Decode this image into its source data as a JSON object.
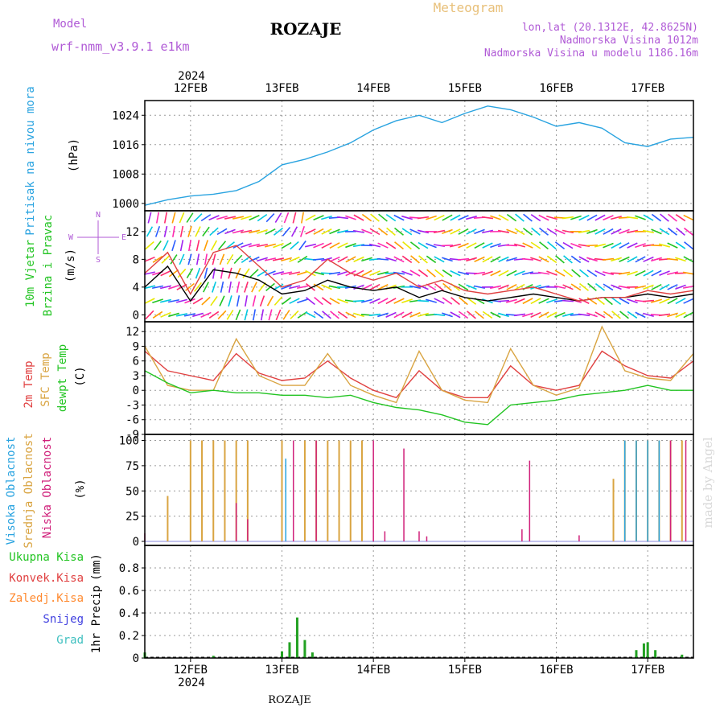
{
  "header": {
    "model_label": "Model",
    "model_name": "wrf-nmm_v3.9.1 e1km",
    "station": "ROZAJE",
    "product": "Meteogram",
    "coords": "lon,lat (20.1312E, 42.8625N)",
    "elevation": "Nadmorska Visina 1012m",
    "model_elevation": "Nadmorska Visina u modelu 1186.16m",
    "watermark": "made by Angel",
    "footer": "ROZAJE"
  },
  "colors": {
    "pressure": "#29a3e0",
    "t2m": "#e04040",
    "sfc": "#d9a441",
    "dewpt": "#22c422",
    "wind_speed": "#000000",
    "gust": "#e04040",
    "cloud_high": "#29a3e0",
    "cloud_mid": "#d9a441",
    "cloud_low": "#d0207a",
    "precip_total": "#22a122",
    "precip_conv": "#e04040",
    "precip_freezing": "#ff8a30",
    "precip_snow": "#4040e0",
    "precip_hail": "#40c0c0"
  },
  "chart_data": {
    "type": "line",
    "x_axis": {
      "year": "2024",
      "start": "2024-02-11T12:00",
      "end": "2024-02-17T12:00",
      "day_labels": [
        "12FEB",
        "13FEB",
        "14FEB",
        "15FEB",
        "16FEB",
        "17FEB"
      ],
      "day_positions": [
        "2024-02-12T00:00",
        "2024-02-13T00:00",
        "2024-02-14T00:00",
        "2024-02-15T00:00",
        "2024-02-16T00:00",
        "2024-02-17T00:00"
      ]
    },
    "panels": [
      {
        "id": "pressure",
        "ylabel": "Pritisak na nivou mora",
        "unit": "(hPa)",
        "ylim": [
          998,
          1028
        ],
        "yticks": [
          1000,
          1008,
          1016,
          1024
        ],
        "series": [
          {
            "name": "Pritisak na nivou mora",
            "x": [
              "2024-02-11T12:00",
              "2024-02-11T18:00",
              "2024-02-12T00:00",
              "2024-02-12T06:00",
              "2024-02-12T12:00",
              "2024-02-12T18:00",
              "2024-02-13T00:00",
              "2024-02-13T06:00",
              "2024-02-13T12:00",
              "2024-02-13T18:00",
              "2024-02-14T00:00",
              "2024-02-14T06:00",
              "2024-02-14T12:00",
              "2024-02-14T18:00",
              "2024-02-15T00:00",
              "2024-02-15T06:00",
              "2024-02-15T12:00",
              "2024-02-15T18:00",
              "2024-02-16T00:00",
              "2024-02-16T06:00",
              "2024-02-16T12:00",
              "2024-02-16T18:00",
              "2024-02-17T00:00",
              "2024-02-17T06:00",
              "2024-02-17T12:00"
            ],
            "values": [
              999.5,
              1001,
              1002,
              1002.5,
              1003.5,
              1006,
              1010.5,
              1012,
              1014,
              1016.5,
              1020,
              1022.5,
              1024,
              1022,
              1024.5,
              1026.5,
              1025.5,
              1023.5,
              1021,
              1022,
              1020.5,
              1016.5,
              1015.5,
              1017.5,
              1018
            ]
          }
        ]
      },
      {
        "id": "wind",
        "ylabel_1": "10m Vjetar",
        "ylabel_2": "Brzina i Pravac",
        "unit": "(m/s)",
        "compass": [
          "N",
          "W",
          "E",
          "S"
        ],
        "ylim": [
          -1,
          15
        ],
        "yticks": [
          0,
          4,
          8,
          12
        ],
        "series": [
          {
            "name": "speed",
            "x": [
              "2024-02-11T12:00",
              "2024-02-11T18:00",
              "2024-02-12T00:00",
              "2024-02-12T06:00",
              "2024-02-12T12:00",
              "2024-02-12T18:00",
              "2024-02-13T00:00",
              "2024-02-13T06:00",
              "2024-02-13T12:00",
              "2024-02-13T18:00",
              "2024-02-14T00:00",
              "2024-02-14T06:00",
              "2024-02-14T12:00",
              "2024-02-14T18:00",
              "2024-02-15T00:00",
              "2024-02-15T06:00",
              "2024-02-15T12:00",
              "2024-02-15T18:00",
              "2024-02-16T00:00",
              "2024-02-16T06:00",
              "2024-02-16T12:00",
              "2024-02-16T18:00",
              "2024-02-17T00:00",
              "2024-02-17T06:00",
              "2024-02-17T12:00"
            ],
            "values": [
              4,
              7,
              2,
              6.5,
              6,
              5,
              3,
              3.5,
              5,
              4,
              3.5,
              4,
              2.5,
              3.5,
              2.5,
              2,
              2.5,
              3,
              2.5,
              2,
              2.5,
              2.5,
              3,
              2.5,
              3
            ]
          },
          {
            "name": "gust",
            "x": [
              "2024-02-11T12:00",
              "2024-02-11T18:00",
              "2024-02-12T00:00",
              "2024-02-12T06:00",
              "2024-02-12T12:00",
              "2024-02-12T18:00",
              "2024-02-13T00:00",
              "2024-02-13T06:00",
              "2024-02-13T12:00",
              "2024-02-13T18:00",
              "2024-02-14T00:00",
              "2024-02-14T06:00",
              "2024-02-14T12:00",
              "2024-02-14T18:00",
              "2024-02-15T00:00",
              "2024-02-15T06:00",
              "2024-02-15T12:00",
              "2024-02-15T18:00",
              "2024-02-16T00:00",
              "2024-02-16T06:00",
              "2024-02-16T12:00",
              "2024-02-16T18:00",
              "2024-02-17T00:00",
              "2024-02-17T06:00",
              "2024-02-17T12:00"
            ],
            "values": [
              6,
              9,
              3,
              9,
              10,
              7,
              4,
              5,
              8,
              6,
              5,
              6,
              4,
              5,
              3.5,
              3,
              3.5,
              4,
              3,
              2,
              2.5,
              2.5,
              3.5,
              3,
              3.5
            ]
          }
        ]
      },
      {
        "id": "temperature",
        "ylabels": [
          "2m Temp",
          "SFC Temp",
          "dewpt Temp"
        ],
        "unit": "(C)",
        "ylim": [
          -9,
          14
        ],
        "yticks": [
          -9,
          -6,
          -3,
          0,
          3,
          6,
          9,
          12
        ],
        "series": [
          {
            "name": "2m Temp",
            "x": [
              "2024-02-11T12:00",
              "2024-02-11T18:00",
              "2024-02-12T00:00",
              "2024-02-12T06:00",
              "2024-02-12T12:00",
              "2024-02-12T18:00",
              "2024-02-13T00:00",
              "2024-02-13T06:00",
              "2024-02-13T12:00",
              "2024-02-13T18:00",
              "2024-02-14T00:00",
              "2024-02-14T06:00",
              "2024-02-14T12:00",
              "2024-02-14T18:00",
              "2024-02-15T00:00",
              "2024-02-15T06:00",
              "2024-02-15T12:00",
              "2024-02-15T18:00",
              "2024-02-16T00:00",
              "2024-02-16T06:00",
              "2024-02-16T12:00",
              "2024-02-16T18:00",
              "2024-02-17T00:00",
              "2024-02-17T06:00",
              "2024-02-17T12:00"
            ],
            "values": [
              8,
              4,
              3,
              2,
              7.5,
              3.5,
              2,
              2.5,
              6,
              2.5,
              0,
              -1.5,
              4,
              0,
              -1.5,
              -1.5,
              5,
              1,
              0,
              1,
              8,
              5,
              3,
              2.5,
              6
            ]
          },
          {
            "name": "SFC Temp",
            "x": [
              "2024-02-11T12:00",
              "2024-02-11T18:00",
              "2024-02-12T00:00",
              "2024-02-12T06:00",
              "2024-02-12T12:00",
              "2024-02-12T18:00",
              "2024-02-13T00:00",
              "2024-02-13T06:00",
              "2024-02-13T12:00",
              "2024-02-13T18:00",
              "2024-02-14T00:00",
              "2024-02-14T06:00",
              "2024-02-14T12:00",
              "2024-02-14T18:00",
              "2024-02-15T00:00",
              "2024-02-15T06:00",
              "2024-02-15T12:00",
              "2024-02-15T18:00",
              "2024-02-16T00:00",
              "2024-02-16T06:00",
              "2024-02-16T12:00",
              "2024-02-16T18:00",
              "2024-02-17T00:00",
              "2024-02-17T06:00",
              "2024-02-17T12:00"
            ],
            "values": [
              9,
              1,
              0,
              0,
              10.5,
              3,
              1,
              1,
              7.5,
              1,
              -1,
              -2.5,
              8,
              0,
              -2,
              -2.5,
              8.5,
              1,
              -1,
              0.5,
              13,
              4,
              2.5,
              2,
              7.5
            ]
          },
          {
            "name": "dewpt Temp",
            "x": [
              "2024-02-11T12:00",
              "2024-02-11T18:00",
              "2024-02-12T00:00",
              "2024-02-12T06:00",
              "2024-02-12T12:00",
              "2024-02-12T18:00",
              "2024-02-13T00:00",
              "2024-02-13T06:00",
              "2024-02-13T12:00",
              "2024-02-13T18:00",
              "2024-02-14T00:00",
              "2024-02-14T06:00",
              "2024-02-14T12:00",
              "2024-02-14T18:00",
              "2024-02-15T00:00",
              "2024-02-15T06:00",
              "2024-02-15T12:00",
              "2024-02-15T18:00",
              "2024-02-16T00:00",
              "2024-02-16T06:00",
              "2024-02-16T12:00",
              "2024-02-16T18:00",
              "2024-02-17T00:00",
              "2024-02-17T06:00",
              "2024-02-17T12:00"
            ],
            "values": [
              4,
              1.5,
              -0.5,
              0,
              -0.5,
              -0.5,
              -1,
              -1,
              -1.5,
              -1,
              -2.5,
              -3.5,
              -4,
              -5,
              -6.5,
              -7,
              -3,
              -2.5,
              -2,
              -1,
              -0.5,
              0,
              1,
              0,
              0
            ]
          }
        ]
      },
      {
        "id": "clouds",
        "ylabels": [
          "Visoka Oblacnost",
          "Srednja Oblacnost",
          "Niska Oblacnost"
        ],
        "unit": "(%)",
        "ylim": [
          -4,
          106
        ],
        "yticks": [
          0,
          25,
          50,
          75,
          100
        ],
        "type": "bar",
        "series": [
          {
            "name": "Srednja Oblacnost",
            "x": [
              "2024-02-11T18:00",
              "2024-02-12T00:00",
              "2024-02-12T03:00",
              "2024-02-12T06:00",
              "2024-02-12T09:00",
              "2024-02-12T12:00",
              "2024-02-12T15:00",
              "2024-02-13T00:00",
              "2024-02-13T06:00",
              "2024-02-13T09:00",
              "2024-02-13T12:00",
              "2024-02-13T15:00",
              "2024-02-13T18:00",
              "2024-02-13T21:00",
              "2024-02-16T15:00",
              "2024-02-16T18:00",
              "2024-02-16T21:00",
              "2024-02-17T00:00",
              "2024-02-17T03:00",
              "2024-02-17T06:00",
              "2024-02-17T09:00"
            ],
            "values": [
              45,
              100,
              100,
              100,
              100,
              100,
              100,
              100,
              100,
              100,
              100,
              100,
              100,
              100,
              62,
              100,
              100,
              100,
              100,
              100,
              100
            ]
          },
          {
            "name": "Niska Oblacnost",
            "x": [
              "2024-02-11T12:00",
              "2024-02-12T12:00",
              "2024-02-12T15:00",
              "2024-02-13T03:00",
              "2024-02-13T09:00",
              "2024-02-14T00:00",
              "2024-02-14T03:00",
              "2024-02-14T08:00",
              "2024-02-14T12:00",
              "2024-02-14T14:00",
              "2024-02-15T15:00",
              "2024-02-15T17:00",
              "2024-02-16T06:00",
              "2024-02-17T06:00",
              "2024-02-17T10:00"
            ],
            "values": [
              8,
              38,
              22,
              100,
              100,
              100,
              10,
              92,
              10,
              5,
              12,
              80,
              6,
              100,
              100
            ]
          },
          {
            "name": "Visoka Oblacnost",
            "x": [
              "2024-02-13T01:00",
              "2024-02-16T18:00",
              "2024-02-16T21:00",
              "2024-02-17T00:00",
              "2024-02-17T03:00"
            ],
            "values": [
              82,
              100,
              100,
              100,
              100
            ]
          }
        ]
      },
      {
        "id": "precip",
        "ylabel": "1hr Precip",
        "unit": "(mm)",
        "legend": [
          "Ukupna Kisa",
          "Konvek.Kisa",
          "Zaledj.Kisa",
          "Snijeg",
          "Grad"
        ],
        "ylim": [
          0,
          1
        ],
        "yticks": [
          0,
          0.2,
          0.4,
          0.6,
          0.8
        ],
        "type": "bar",
        "series": [
          {
            "name": "Ukupna Kisa",
            "x": [
              "2024-02-11T12:00",
              "2024-02-12T06:00",
              "2024-02-13T00:00",
              "2024-02-13T02:00",
              "2024-02-13T04:00",
              "2024-02-13T06:00",
              "2024-02-13T08:00",
              "2024-02-16T21:00",
              "2024-02-16T23:00",
              "2024-02-17T00:00",
              "2024-02-17T02:00",
              "2024-02-17T09:00"
            ],
            "values": [
              0.05,
              0.02,
              0.06,
              0.14,
              0.36,
              0.16,
              0.05,
              0.07,
              0.13,
              0.14,
              0.07,
              0.03
            ]
          }
        ]
      }
    ]
  }
}
